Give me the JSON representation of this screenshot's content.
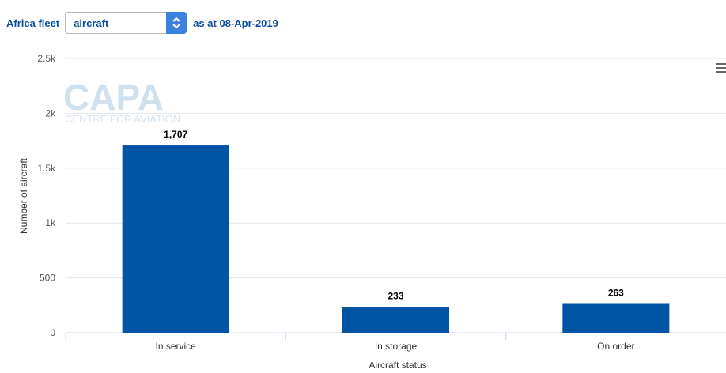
{
  "header": {
    "prefix": "Africa fleet",
    "select_value": "aircraft",
    "suffix": "as at 08-Apr-2019"
  },
  "watermark": {
    "logo": "CAPA",
    "tagline": "CENTRE FOR AVIATION"
  },
  "chart_data": {
    "type": "bar",
    "categories": [
      "In service",
      "In storage",
      "On order"
    ],
    "values": [
      1707,
      233,
      263
    ],
    "value_labels": [
      "1,707",
      "233",
      "263"
    ],
    "xlabel": "Aircraft status",
    "ylabel": "Number of aircraft",
    "ylim": [
      0,
      2500
    ],
    "yticks": [
      0,
      500,
      1000,
      1500,
      2000,
      2500
    ],
    "ytick_labels": [
      "0",
      "500",
      "1k",
      "1.5k",
      "2k",
      "2.5k"
    ],
    "grid": true,
    "legend": "none",
    "bar_color": "#0054a6"
  },
  "colors": {
    "accent": "#0a4f9e",
    "select_arrow": "#3b82e0"
  },
  "icons": {
    "menu": "hamburger-menu-icon",
    "select_arrow": "chevron-up-down-icon"
  }
}
